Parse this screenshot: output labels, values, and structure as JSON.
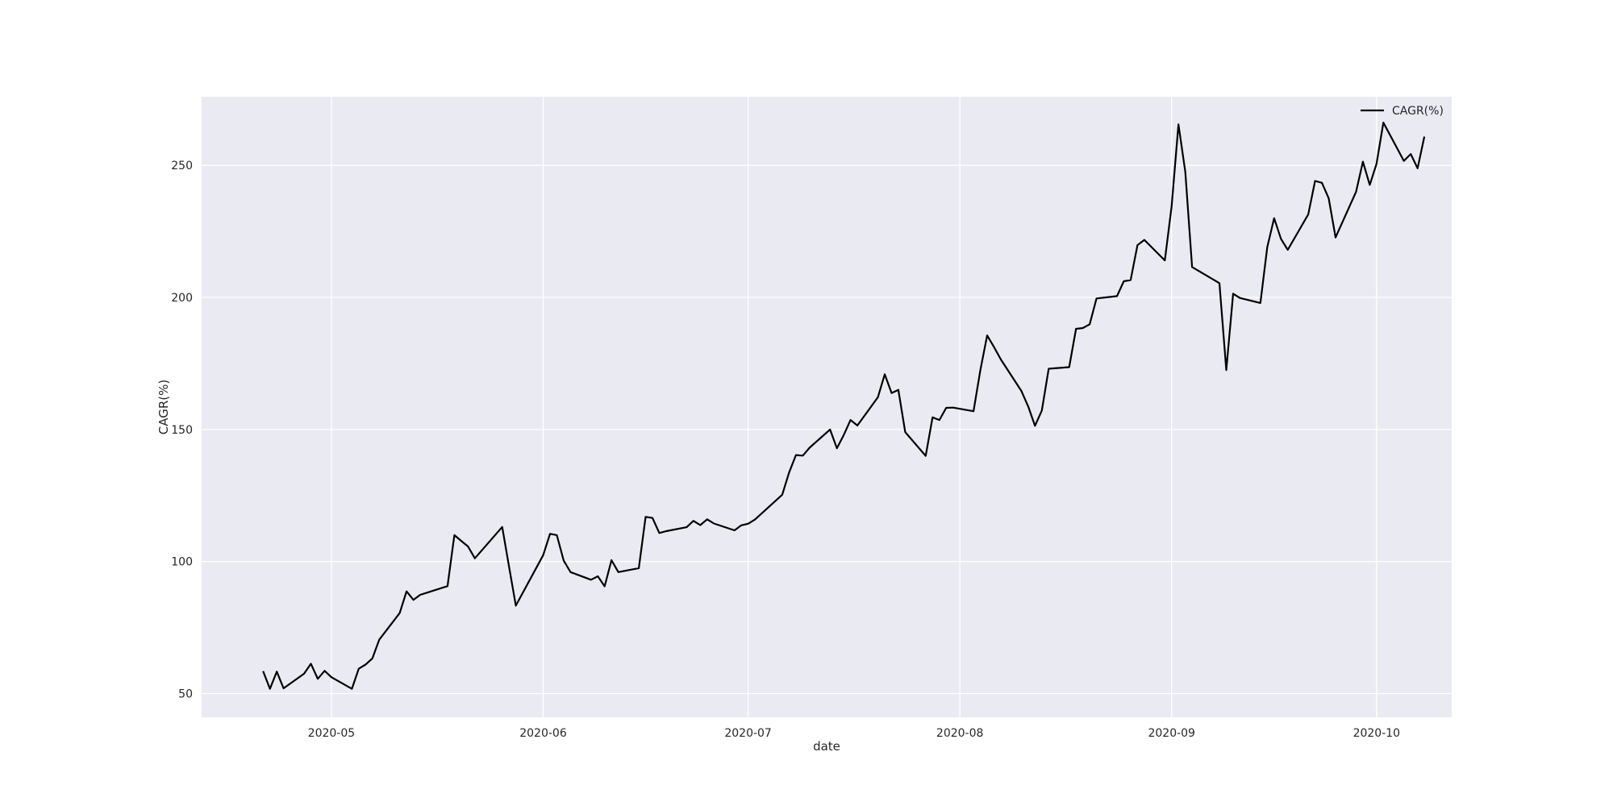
{
  "colors": {
    "figure_background": "#ffffff",
    "plot_background": "#eaeaf2",
    "grid": "#ffffff",
    "line": "#000000"
  },
  "chart_data": {
    "type": "line",
    "title": "",
    "xlabel": "date",
    "ylabel": "CAGR(%)",
    "x_is_date": true,
    "xlim": [
      "2020-04-12",
      "2020-10-12"
    ],
    "ylim": [
      41,
      276
    ],
    "xticks": [
      "2020-05-01",
      "2020-06-01",
      "2020-07-01",
      "2020-08-01",
      "2020-09-01",
      "2020-10-01"
    ],
    "xtick_labels": [
      "2020-05",
      "2020-06",
      "2020-07",
      "2020-08",
      "2020-09",
      "2020-10"
    ],
    "yticks": [
      50,
      100,
      150,
      200,
      250
    ],
    "ytick_labels": [
      "50",
      "100",
      "150",
      "200",
      "250"
    ],
    "grid": true,
    "legend": {
      "position": "top-right",
      "entries": [
        "CAGR(%)"
      ]
    },
    "series": [
      {
        "name": "CAGR(%)",
        "x": [
          "2020-04-21",
          "2020-04-22",
          "2020-04-23",
          "2020-04-24",
          "2020-04-27",
          "2020-04-28",
          "2020-04-29",
          "2020-04-30",
          "2020-05-01",
          "2020-05-04",
          "2020-05-05",
          "2020-05-06",
          "2020-05-07",
          "2020-05-08",
          "2020-05-11",
          "2020-05-12",
          "2020-05-13",
          "2020-05-14",
          "2020-05-15",
          "2020-05-18",
          "2020-05-19",
          "2020-05-20",
          "2020-05-21",
          "2020-05-22",
          "2020-05-26",
          "2020-05-27",
          "2020-05-28",
          "2020-06-01",
          "2020-06-02",
          "2020-06-03",
          "2020-06-04",
          "2020-06-05",
          "2020-06-08",
          "2020-06-09",
          "2020-06-10",
          "2020-06-11",
          "2020-06-12",
          "2020-06-15",
          "2020-06-16",
          "2020-06-17",
          "2020-06-18",
          "2020-06-19",
          "2020-06-22",
          "2020-06-23",
          "2020-06-24",
          "2020-06-25",
          "2020-06-26",
          "2020-06-29",
          "2020-06-30",
          "2020-07-01",
          "2020-07-02",
          "2020-07-06",
          "2020-07-07",
          "2020-07-08",
          "2020-07-09",
          "2020-07-10",
          "2020-07-13",
          "2020-07-14",
          "2020-07-15",
          "2020-07-16",
          "2020-07-17",
          "2020-07-20",
          "2020-07-21",
          "2020-07-22",
          "2020-07-23",
          "2020-07-24",
          "2020-07-27",
          "2020-07-28",
          "2020-07-29",
          "2020-07-30",
          "2020-07-31",
          "2020-08-03",
          "2020-08-04",
          "2020-08-05",
          "2020-08-06",
          "2020-08-07",
          "2020-08-10",
          "2020-08-11",
          "2020-08-12",
          "2020-08-13",
          "2020-08-14",
          "2020-08-17",
          "2020-08-18",
          "2020-08-19",
          "2020-08-20",
          "2020-08-21",
          "2020-08-24",
          "2020-08-25",
          "2020-08-26",
          "2020-08-27",
          "2020-08-28",
          "2020-08-31",
          "2020-09-01",
          "2020-09-02",
          "2020-09-03",
          "2020-09-04",
          "2020-09-08",
          "2020-09-09",
          "2020-09-10",
          "2020-09-11",
          "2020-09-14",
          "2020-09-15",
          "2020-09-16",
          "2020-09-17",
          "2020-09-18",
          "2020-09-21",
          "2020-09-22",
          "2020-09-23",
          "2020-09-24",
          "2020-09-25",
          "2020-09-28",
          "2020-09-29",
          "2020-09-30",
          "2020-10-01",
          "2020-10-02",
          "2020-10-05",
          "2020-10-06",
          "2020-10-07",
          "2020-10-08"
        ],
        "y": [
          58.5,
          51.8,
          58.3,
          52.0,
          57.5,
          61.3,
          55.6,
          58.6,
          56.2,
          51.8,
          59.4,
          61.0,
          63.3,
          70.4,
          80.5,
          88.7,
          85.5,
          87.4,
          88.2,
          90.7,
          110.0,
          107.8,
          105.7,
          101.2,
          113.1,
          98.2,
          83.3,
          102.4,
          110.5,
          110.0,
          100.4,
          96.0,
          93.1,
          94.4,
          90.6,
          100.5,
          96.0,
          97.5,
          116.9,
          116.5,
          110.8,
          111.5,
          113.0,
          115.4,
          113.8,
          116.0,
          114.4,
          111.8,
          113.7,
          114.3,
          115.9,
          125.3,
          133.7,
          140.3,
          140.1,
          143.1,
          150.0,
          142.9,
          147.9,
          153.6,
          151.5,
          162.2,
          170.9,
          163.8,
          165.0,
          149.0,
          140.0,
          154.6,
          153.6,
          158.2,
          158.3,
          156.9,
          172.5,
          185.6,
          181.2,
          176.5,
          164.6,
          158.7,
          151.4,
          157.2,
          173.0,
          173.6,
          188.1,
          188.4,
          189.8,
          199.6,
          200.5,
          206.1,
          206.6,
          219.8,
          221.8,
          214.0,
          234.4,
          265.5,
          247.5,
          211.5,
          205.4,
          172.5,
          201.4,
          199.8,
          197.9,
          219.0,
          230.0,
          222.2,
          218.0,
          231.4,
          244.1,
          243.4,
          237.5,
          222.7,
          240.0,
          251.4,
          242.6,
          250.6,
          266.2,
          251.7,
          254.3,
          248.9,
          260.9
        ]
      }
    ]
  }
}
